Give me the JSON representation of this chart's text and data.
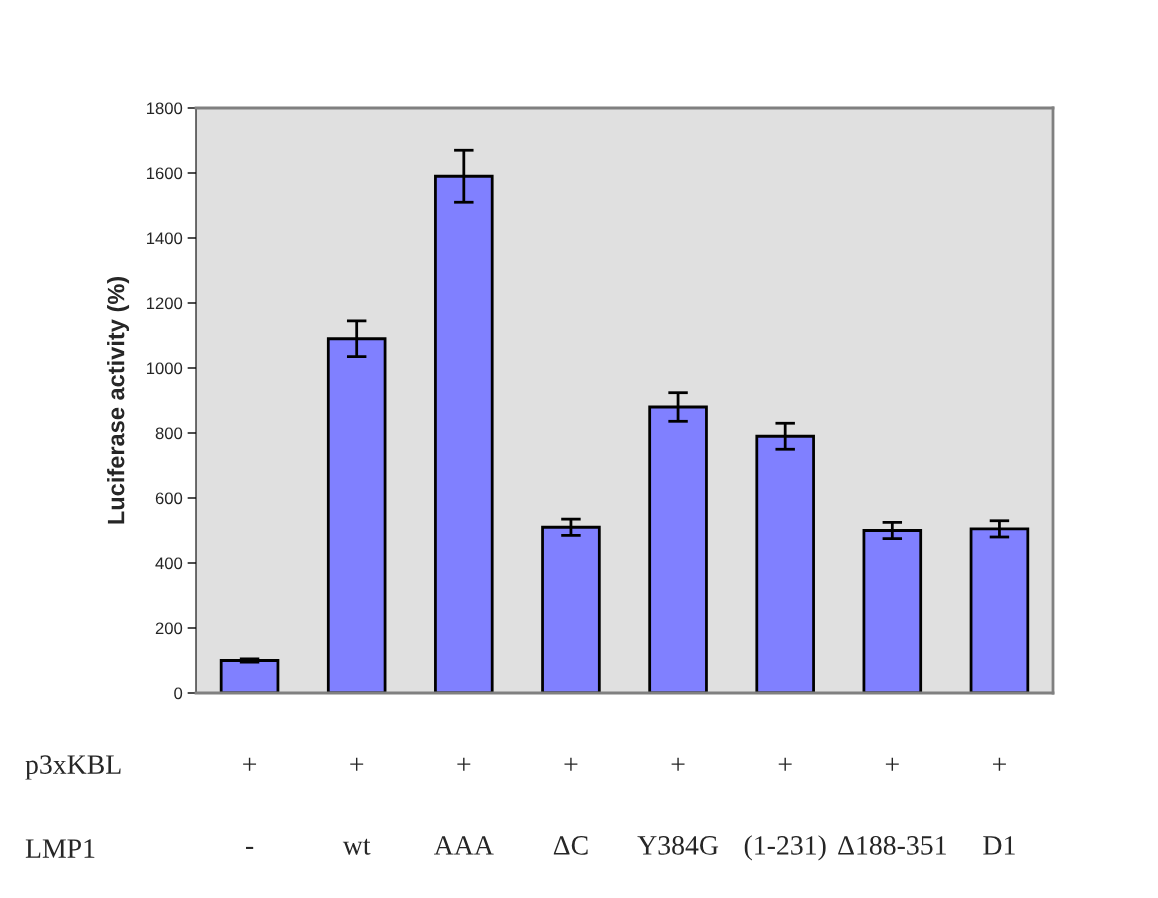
{
  "chart_data": {
    "type": "bar",
    "ylabel": "Luciferase activity (%)",
    "categories": [
      "+\n-",
      "+\nwt",
      "+\nAAA",
      "+\nΔC",
      "+\nY384G",
      "+\n(1-231)",
      "+\nΔ188-351",
      "+\nD1"
    ],
    "values": [
      100,
      1090,
      1590,
      510,
      880,
      790,
      500,
      505
    ],
    "errors": [
      5,
      55,
      80,
      25,
      44,
      40,
      25,
      25
    ],
    "color": "#8080ff",
    "ylim": [
      0,
      1800
    ],
    "yticks": [
      0,
      200,
      400,
      600,
      800,
      1000,
      1200,
      1400,
      1600,
      1800
    ],
    "grid": false,
    "annotations": [
      "p3xKBL",
      "LMP1"
    ]
  }
}
